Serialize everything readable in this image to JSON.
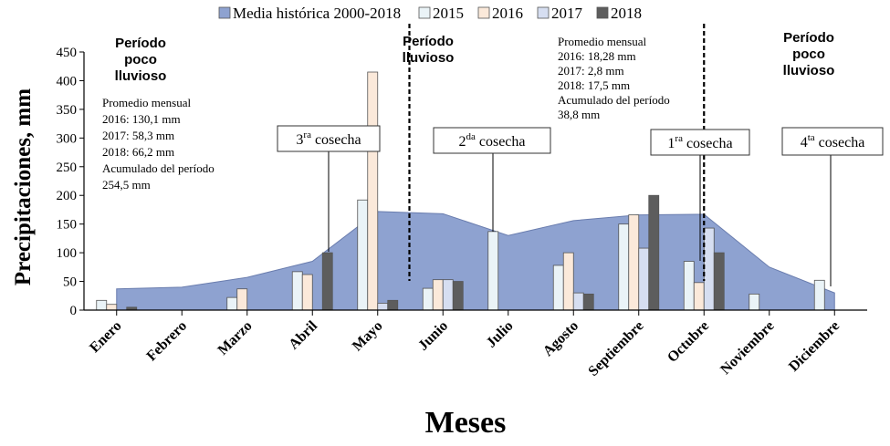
{
  "chart_data": {
    "type": "bar",
    "xlabel": "Meses",
    "ylabel": "Precipitaciones, mm",
    "ylim": [
      0,
      450
    ],
    "yticks": [
      0,
      50,
      100,
      150,
      200,
      250,
      300,
      350,
      400,
      450
    ],
    "categories": [
      "Enero",
      "Febrero",
      "Marzo",
      "Abril",
      "Mayo",
      "Junio",
      "Julio",
      "Agosto",
      "Septiembre",
      "Octubre",
      "Noviembre",
      "Diciembre"
    ],
    "area": {
      "name": "Media histórica 2000-2018",
      "color": "#8EA2D0",
      "values": [
        37,
        40,
        57,
        85,
        172,
        168,
        130,
        156,
        166,
        167,
        75,
        30
      ]
    },
    "series": [
      {
        "name": "2015",
        "color": "#EAF3F7",
        "values": [
          17,
          0,
          22,
          67,
          192,
          38,
          137,
          78,
          150,
          85,
          28,
          52
        ]
      },
      {
        "name": "2016",
        "color": "#FBE9DA",
        "values": [
          10,
          0,
          37,
          62,
          415,
          53,
          0,
          100,
          166,
          48,
          0,
          0
        ]
      },
      {
        "name": "2017",
        "color": "#D6DEF1",
        "values": [
          0,
          0,
          0,
          0,
          12,
          53,
          0,
          30,
          108,
          143,
          0,
          0
        ]
      },
      {
        "name": "2018",
        "color": "#5D5D5D",
        "values": [
          5,
          0,
          0,
          100,
          17,
          50,
          0,
          28,
          200,
          100,
          0,
          0
        ]
      }
    ],
    "legend_position": "top"
  },
  "annotations": {
    "period_left": [
      "Período",
      "poco",
      "lluvioso"
    ],
    "period_mid": [
      "Período",
      "lluvioso"
    ],
    "period_right": [
      "Período",
      "poco",
      "lluvioso"
    ],
    "note_left": [
      "Promedio mensual",
      "2016: 130,1 mm",
      "2017: 58,3 mm",
      "2018: 66,2 mm",
      "Acumulado  del período",
      "254,5 mm"
    ],
    "note_right": [
      "Promedio mensual",
      "2016: 18,28 mm",
      "2017: 2,8 mm",
      "2018: 17,5 mm",
      "Acumulado  del período",
      "38,8 mm"
    ],
    "harvests": [
      {
        "base": "3",
        "sup": "ra",
        "word": " cosecha",
        "month": 3
      },
      {
        "base": "2",
        "sup": "da",
        "word": " cosecha",
        "month": 6
      },
      {
        "base": "1",
        "sup": "ra",
        "word": " cosecha",
        "month": 9
      },
      {
        "base": "4",
        "sup": "ta",
        "word": " cosecha",
        "month": 11
      }
    ]
  }
}
